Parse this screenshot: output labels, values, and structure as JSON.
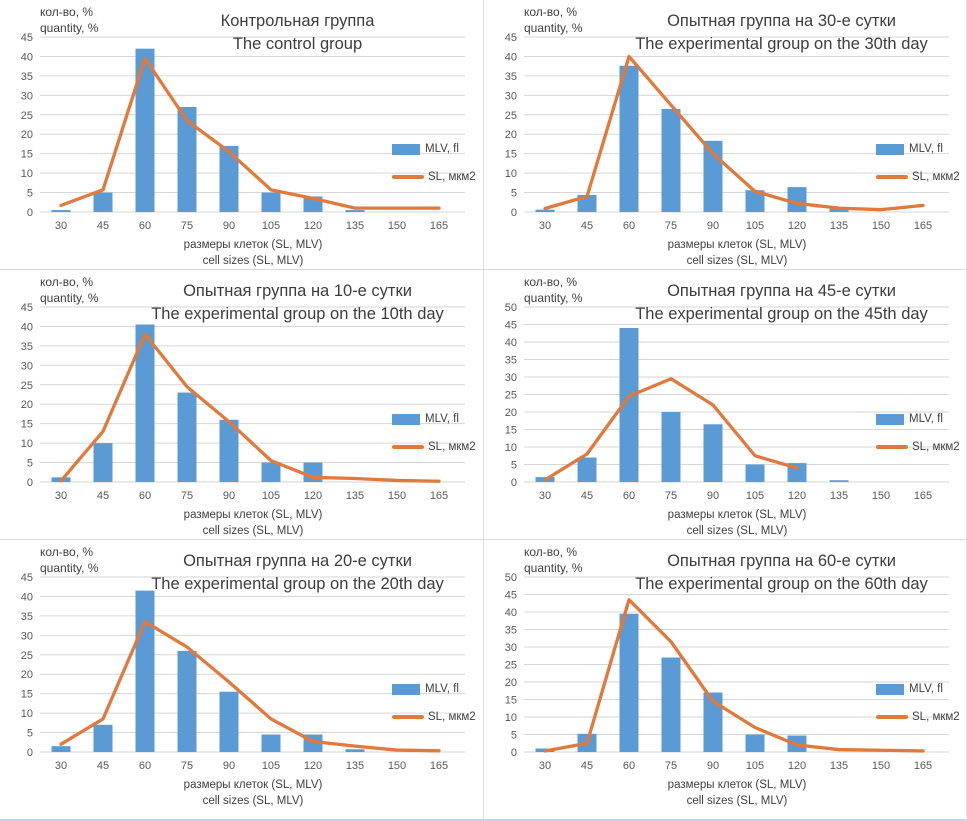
{
  "colors": {
    "bar": "#5B9BD5",
    "line": "#E2793B",
    "grid": "#D6D6D6",
    "tick_text": "#595959",
    "title_text": "#3D3D3D"
  },
  "axis": {
    "y_unit_line1": "кол-во, %",
    "y_unit_line2": "quantity, %",
    "x_title_line1": "размеры клеток (SL, MLV)",
    "x_title_line2": "cell sizes (SL, MLV)"
  },
  "legend": {
    "bar_label": "MLV, fl",
    "line_label": "SL,  мкм2"
  },
  "chart_data": [
    {
      "type": "bar+line",
      "title": "Контрольная группа",
      "subtitle": "The control group",
      "categories": [
        30,
        45,
        60,
        75,
        90,
        105,
        120,
        135,
        150,
        165
      ],
      "xlabel": "размеры клеток (SL, MLV) / cell sizes (SL, MLV)",
      "ylabel": "кол-во, % / quantity, %",
      "ylim": [
        0,
        45
      ],
      "y_step": 5,
      "series": [
        {
          "name": "MLV, fl",
          "kind": "bar",
          "values": [
            0.5,
            5,
            42,
            27,
            17,
            5,
            4,
            0.5,
            0,
            0
          ]
        },
        {
          "name": "SL, мкм2",
          "kind": "line",
          "values": [
            1.7,
            5.7,
            39.5,
            23.5,
            15.5,
            5.7,
            3.5,
            1,
            1,
            1
          ]
        }
      ]
    },
    {
      "type": "bar+line",
      "title": "Опытная группа на 30-е сутки",
      "subtitle": "The experimental group on the 30th day",
      "categories": [
        30,
        45,
        60,
        75,
        90,
        105,
        120,
        135,
        150,
        165
      ],
      "xlabel": "размеры клеток (SL, MLV) / cell sizes (SL, MLV)",
      "ylabel": "кол-во, % / quantity, %",
      "ylim": [
        0,
        45
      ],
      "y_step": 5,
      "series": [
        {
          "name": "MLV, fl",
          "kind": "bar",
          "values": [
            0.6,
            4.4,
            37.6,
            26.5,
            18.3,
            5.6,
            6.4,
            1,
            0,
            0
          ]
        },
        {
          "name": "SL, мкм2",
          "kind": "line",
          "values": [
            0.9,
            4,
            40,
            27.5,
            15,
            5.3,
            2.2,
            1,
            0.6,
            1.7
          ]
        }
      ]
    },
    {
      "type": "bar+line",
      "title": "Опытная группа на 10-е сутки",
      "subtitle": "The experimental group on the 10th day",
      "categories": [
        30,
        45,
        60,
        75,
        90,
        105,
        120,
        135,
        150,
        165
      ],
      "xlabel": "размеры клеток (SL, MLV) / cell sizes (SL, MLV)",
      "ylabel": "кол-во, % / quantity, %",
      "ylim": [
        0,
        45
      ],
      "y_step": 5,
      "series": [
        {
          "name": "MLV, fl",
          "kind": "bar",
          "values": [
            1.2,
            10,
            40.5,
            23,
            16,
            5,
            5,
            0,
            0,
            0
          ]
        },
        {
          "name": "SL, мкм2",
          "kind": "line",
          "values": [
            0.3,
            13,
            38,
            24.5,
            15.5,
            5.5,
            1.2,
            0.9,
            0.4,
            0.2
          ]
        }
      ]
    },
    {
      "type": "bar+line",
      "title": "Опытная группа на 45-е сутки",
      "subtitle": "The experimental group on the 45th day",
      "categories": [
        30,
        45,
        60,
        75,
        90,
        105,
        120,
        135,
        150,
        165
      ],
      "xlabel": "размеры клеток (SL, MLV) / cell sizes (SL, MLV)",
      "ylabel": "кол-во, % / quantity, %",
      "ylim": [
        0,
        50
      ],
      "y_step": 5,
      "series": [
        {
          "name": "MLV, fl",
          "kind": "bar",
          "values": [
            1.4,
            7,
            44,
            20,
            16.5,
            5,
            5.4,
            0.5,
            0,
            0
          ]
        },
        {
          "name": "SL, мкм2",
          "kind": "line",
          "values": [
            0.6,
            8,
            24.5,
            29.5,
            22,
            7.5,
            4,
            null,
            null,
            null
          ]
        }
      ]
    },
    {
      "type": "bar+line",
      "title": "Опытная группа на 20-е сутки",
      "subtitle": "The experimental group on the 20th day",
      "categories": [
        30,
        45,
        60,
        75,
        90,
        105,
        120,
        135,
        150,
        165
      ],
      "xlabel": "размеры клеток (SL, MLV) / cell sizes (SL, MLV)",
      "ylabel": "кол-во, % / quantity, %",
      "ylim": [
        0,
        45
      ],
      "y_step": 5,
      "series": [
        {
          "name": "MLV, fl",
          "kind": "bar",
          "values": [
            1.5,
            7,
            41.5,
            26,
            15.5,
            4.5,
            4.5,
            0.7,
            0,
            0
          ]
        },
        {
          "name": "SL, мкм2",
          "kind": "line",
          "values": [
            2,
            8.5,
            33.5,
            27,
            18,
            8.5,
            2.7,
            1.5,
            0.5,
            0.3
          ]
        }
      ]
    },
    {
      "type": "bar+line",
      "title": "Опытная группа на 60-е сутки",
      "subtitle": "The experimental group on the 60th day",
      "categories": [
        30,
        45,
        60,
        75,
        90,
        105,
        120,
        135,
        150,
        165
      ],
      "xlabel": "размеры клеток (SL, MLV) / cell sizes (SL, MLV)",
      "ylabel": "кол-во, % / quantity, %",
      "ylim": [
        0,
        50
      ],
      "y_step": 5,
      "series": [
        {
          "name": "MLV, fl",
          "kind": "bar",
          "values": [
            1,
            5.2,
            39.5,
            27,
            17,
            5,
            4.7,
            0,
            0,
            0
          ]
        },
        {
          "name": "SL, мкм2",
          "kind": "line",
          "values": [
            0.3,
            2.5,
            43.5,
            31.5,
            14.5,
            7,
            2,
            0.7,
            0.5,
            0.3
          ]
        }
      ]
    }
  ]
}
